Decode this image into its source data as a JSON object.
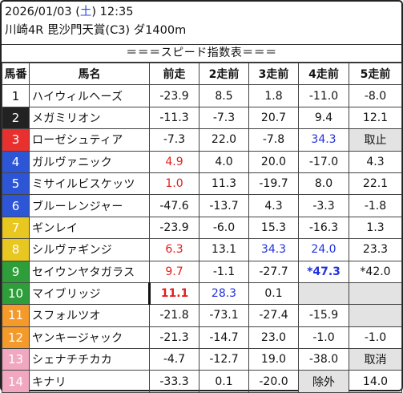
{
  "header": {
    "date": "2026/01/03",
    "weekday_open": "(",
    "weekday": "土",
    "weekday_close": ")",
    "time": "12:35",
    "race_line": "川崎4R 毘沙門天賞(C3) ダ1400m"
  },
  "banner": "＝＝＝スピード指数表＝＝＝",
  "columns": [
    "馬番",
    "馬名",
    "前走",
    "2走前",
    "3走前",
    "4走前",
    "5走前"
  ],
  "gate_colors": {
    "1": "#ffffff",
    "2": "#222222",
    "3": "#e8312f",
    "4": "#2c56d6",
    "5": "#e8c720",
    "6": "#2e9e3a",
    "7": "#f39a2b",
    "8": "#f0a7bf"
  },
  "rows": [
    {
      "no": "1",
      "gate": "1",
      "name": "ハイウィルヘーズ",
      "c": [
        "-23.9",
        "8.5",
        "1.8",
        "-11.0",
        "-8.0"
      ],
      "s": [
        "",
        "",
        "",
        "",
        ""
      ]
    },
    {
      "no": "2",
      "gate": "2",
      "name": "メガミリオン",
      "c": [
        "-11.3",
        "-7.3",
        "20.7",
        "9.4",
        "12.1"
      ],
      "s": [
        "",
        "",
        "",
        "",
        ""
      ]
    },
    {
      "no": "3",
      "gate": "3",
      "name": "ローゼシュティア",
      "c": [
        "-7.3",
        "22.0",
        "-7.8",
        "34.3",
        "取止"
      ],
      "s": [
        "",
        "",
        "",
        "blue",
        "gray"
      ]
    },
    {
      "no": "4",
      "gate": "4",
      "name": "ガルヴァニック",
      "c": [
        "4.9",
        "4.0",
        "20.0",
        "-17.0",
        "4.3"
      ],
      "s": [
        "red",
        "",
        "",
        "",
        ""
      ]
    },
    {
      "no": "5",
      "gate": "4",
      "name": "ミサイルビスケッツ",
      "c": [
        "1.0",
        "11.3",
        "-19.7",
        "8.0",
        "22.1"
      ],
      "s": [
        "red",
        "",
        "",
        "",
        ""
      ]
    },
    {
      "no": "6",
      "gate": "4",
      "name": "ブルーレンジャー",
      "c": [
        "-47.6",
        "-13.7",
        "4.3",
        "-3.3",
        "-1.8"
      ],
      "s": [
        "",
        "",
        "",
        "",
        ""
      ]
    },
    {
      "no": "7",
      "gate": "5",
      "name": "ギンレイ",
      "c": [
        "-23.9",
        "-6.0",
        "15.3",
        "-16.3",
        "1.3"
      ],
      "s": [
        "",
        "",
        "",
        "",
        ""
      ]
    },
    {
      "no": "8",
      "gate": "5",
      "name": "シルヴァギンジ",
      "c": [
        "6.3",
        "13.1",
        "34.3",
        "24.0",
        "23.3"
      ],
      "s": [
        "red",
        "",
        "blue",
        "blue",
        ""
      ]
    },
    {
      "no": "9",
      "gate": "6",
      "name": "セイウンヤタガラス",
      "c": [
        "9.7",
        "-1.1",
        "-27.7",
        "*47.3",
        "*42.0"
      ],
      "s": [
        "red",
        "",
        "",
        "bluebold",
        ""
      ]
    },
    {
      "no": "10",
      "gate": "6",
      "name": "マイブリッジ",
      "c": [
        "11.1",
        "28.3",
        "0.1",
        "",
        ""
      ],
      "s": [
        "redbold",
        "blue",
        "",
        "gray",
        "gray"
      ]
    },
    {
      "no": "11",
      "gate": "7",
      "name": "スフォルツオ",
      "c": [
        "-21.8",
        "-73.1",
        "-27.4",
        "-15.9",
        ""
      ],
      "s": [
        "",
        "",
        "",
        "",
        "gray"
      ]
    },
    {
      "no": "12",
      "gate": "7",
      "name": "ヤンキージャック",
      "c": [
        "-21.3",
        "-14.7",
        "23.0",
        "-1.0",
        "-1.0"
      ],
      "s": [
        "",
        "",
        "",
        "",
        ""
      ]
    },
    {
      "no": "13",
      "gate": "8",
      "name": "シェナチチカカ",
      "c": [
        "-4.7",
        "-12.7",
        "19.0",
        "-38.0",
        "取消"
      ],
      "s": [
        "",
        "",
        "",
        "",
        "gray"
      ]
    },
    {
      "no": "14",
      "gate": "8",
      "name": "キナリ",
      "c": [
        "-33.3",
        "0.1",
        "-20.0",
        "除外",
        "14.0"
      ],
      "s": [
        "",
        "",
        "",
        "gray",
        ""
      ]
    }
  ]
}
